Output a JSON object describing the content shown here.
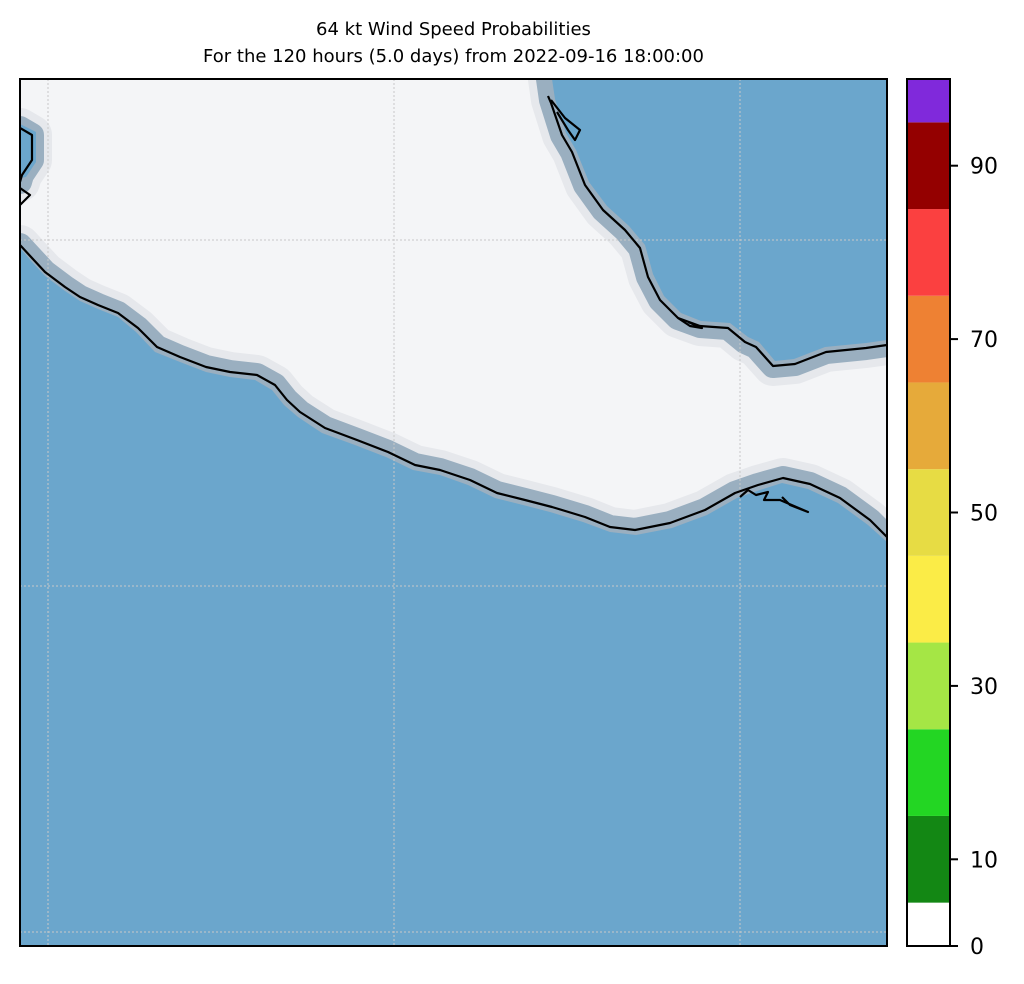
{
  "title": "64 kt Wind Speed Probabilities",
  "subtitle": "For the 120 hours (5.0 days) from 2022-09-16 18:00:00",
  "colors": {
    "ocean": "#6ba6cc",
    "land": "#f4f5f7",
    "coast_halo": "#9aafc0",
    "coast_line": "#000000",
    "grid": "#c8c8c8"
  },
  "colorbar": {
    "ticks": [
      "0",
      "10",
      "30",
      "50",
      "70",
      "90"
    ],
    "tick_values": [
      0,
      10,
      30,
      50,
      70,
      90
    ],
    "range": [
      0,
      100
    ],
    "bins": [
      {
        "from": 0,
        "to": 5,
        "color": "#ffffff"
      },
      {
        "from": 5,
        "to": 15,
        "color": "#138714"
      },
      {
        "from": 15,
        "to": 25,
        "color": "#23d623"
      },
      {
        "from": 25,
        "to": 35,
        "color": "#a5e645"
      },
      {
        "from": 35,
        "to": 45,
        "color": "#fbec47"
      },
      {
        "from": 45,
        "to": 55,
        "color": "#e7dc44"
      },
      {
        "from": 55,
        "to": 65,
        "color": "#e6aa3a"
      },
      {
        "from": 65,
        "to": 75,
        "color": "#ee8133"
      },
      {
        "from": 75,
        "to": 85,
        "color": "#fb4040"
      },
      {
        "from": 85,
        "to": 95,
        "color": "#940000"
      },
      {
        "from": 95,
        "to": 100,
        "color": "#8029db"
      }
    ]
  }
}
